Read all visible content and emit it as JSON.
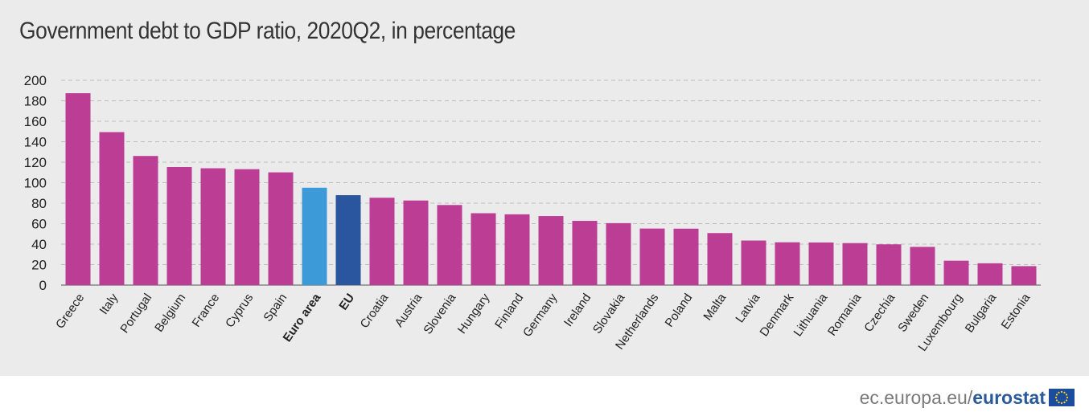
{
  "chart_data": {
    "type": "bar",
    "title": "Government debt to GDP ratio, 2020Q2, in percentage",
    "xlabel": "",
    "ylabel": "",
    "ylim": [
      0,
      200
    ],
    "yticks": [
      0,
      20,
      40,
      60,
      80,
      100,
      120,
      140,
      160,
      180,
      200
    ],
    "grid": true,
    "categories": [
      "Greece",
      "Italy",
      "Portugal",
      "Belgium",
      "France",
      "Cyprus",
      "Spain",
      "Euro area",
      "EU",
      "Croatia",
      "Austria",
      "Slovenia",
      "Hungary",
      "Finland",
      "Germany",
      "Ireland",
      "Slovakia",
      "Netherlands",
      "Poland",
      "Malta",
      "Latvia",
      "Denmark",
      "Lithuania",
      "Romania",
      "Czechia",
      "Sweden",
      "Luxembourg",
      "Bulgaria",
      "Estonia"
    ],
    "values": [
      187.4,
      149.4,
      126.1,
      115.3,
      114.1,
      113.2,
      110.1,
      95.1,
      87.8,
      85.3,
      82.6,
      78.2,
      70.2,
      69.1,
      67.4,
      62.7,
      60.5,
      55.2,
      55.1,
      50.8,
      43.5,
      41.8,
      41.6,
      41.0,
      39.8,
      37.3,
      23.8,
      21.3,
      18.5
    ],
    "bold_categories": [
      "Euro area",
      "EU"
    ],
    "colors": {
      "default": "#bb3d94",
      "Euro area": "#3d9ad8",
      "EU": "#2a559f"
    }
  },
  "footer": {
    "site": "ec.europa.eu/",
    "brand": "eurostat"
  }
}
